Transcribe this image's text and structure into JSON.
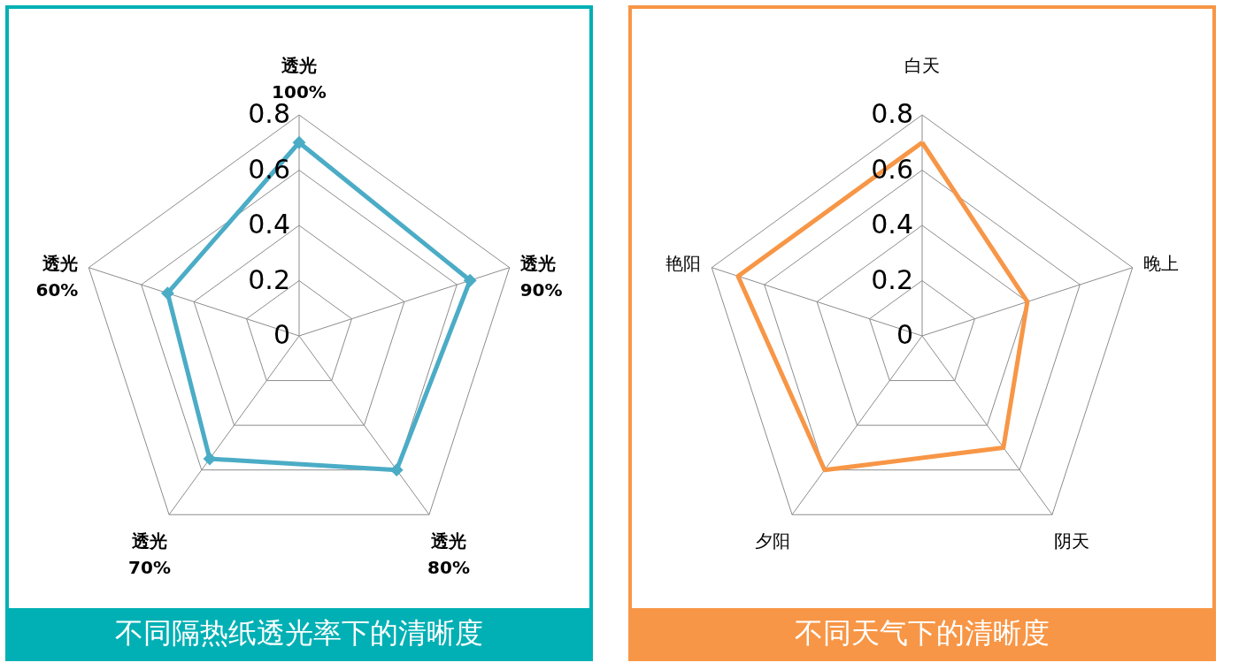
{
  "chart_data": [
    {
      "type": "radar",
      "title": "不同隔热纸透光率下的清晰度",
      "categories": [
        "透光\n100%",
        "透光\n90%",
        "透光\n80%",
        "透光\n70%",
        "透光\n60%"
      ],
      "series": [
        {
          "color": "#4bacc6",
          "values": [
            0.7,
            0.65,
            0.6,
            0.55,
            0.5
          ]
        }
      ],
      "ylim": [
        0,
        0.8
      ],
      "yticks": [
        0,
        0.2,
        0.4,
        0.6,
        0.8
      ],
      "grid": true,
      "marker": "diamond",
      "line_style": "solid"
    },
    {
      "type": "radar",
      "title": "不同天气下的清晰度",
      "categories": [
        "白天",
        "晚上",
        "阴天",
        "夕阳",
        "艳阳"
      ],
      "series": [
        {
          "color": "#f79646",
          "values": [
            0.7,
            0.4,
            0.5,
            0.6,
            0.7
          ]
        }
      ],
      "ylim": [
        0,
        0.8
      ],
      "yticks": [
        0,
        0.2,
        0.4,
        0.6,
        0.8
      ],
      "grid": true,
      "line_style": "solid"
    }
  ]
}
